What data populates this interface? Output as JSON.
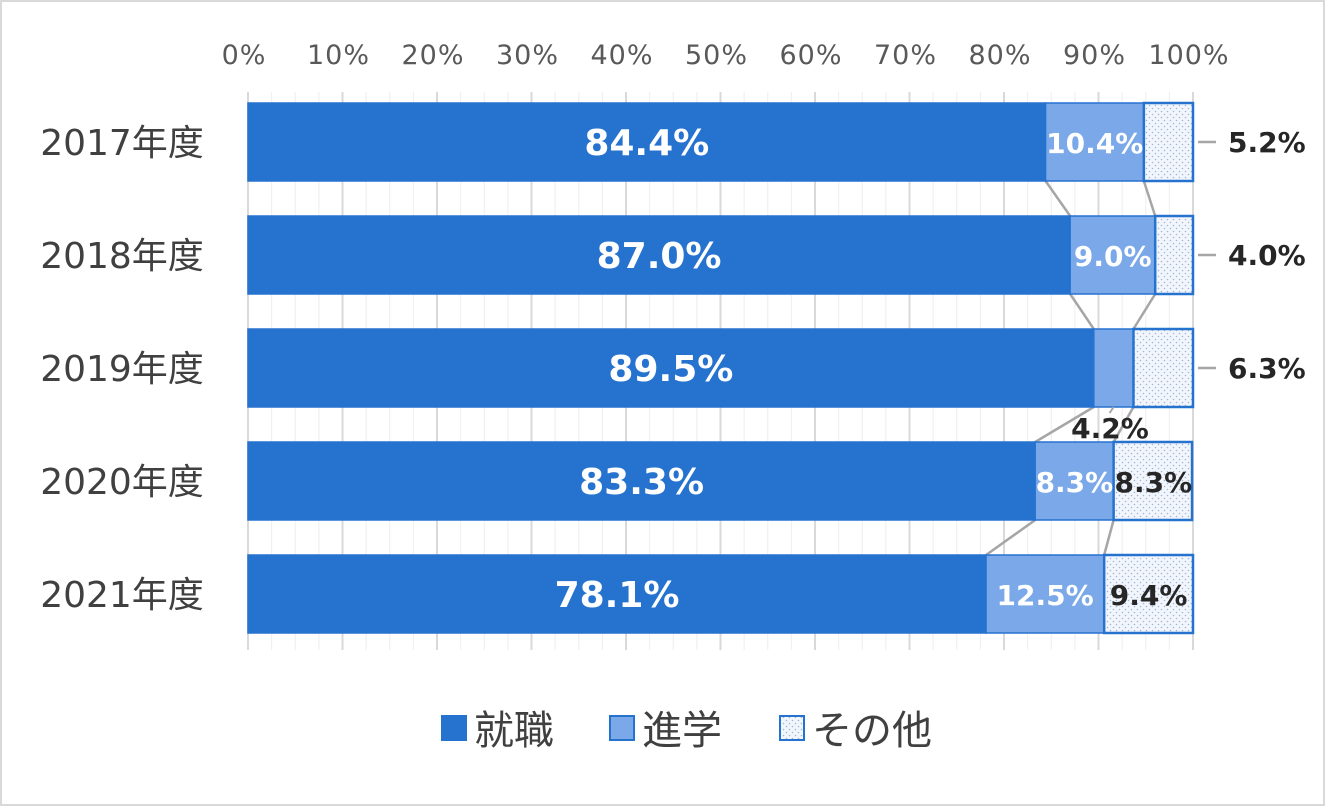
{
  "chart_data": {
    "type": "bar",
    "orientation": "horizontal",
    "stacked": "percent",
    "categories": [
      "2017年度",
      "2018年度",
      "2019年度",
      "2020年度",
      "2021年度"
    ],
    "series": [
      {
        "name": "就職",
        "values": [
          84.4,
          87.0,
          89.5,
          83.3,
          78.1
        ],
        "labels": [
          "84.4%",
          "87.0%",
          "89.5%",
          "83.3%",
          "78.1%"
        ],
        "color": "#2672cf"
      },
      {
        "name": "進学",
        "values": [
          10.4,
          9.0,
          4.2,
          8.3,
          12.5
        ],
        "labels": [
          "10.4%",
          "9.0%",
          "4.2%",
          "8.3%",
          "12.5%"
        ],
        "color": "#7aa8e8"
      },
      {
        "name": "その他",
        "values": [
          5.2,
          4.0,
          6.3,
          8.3,
          9.4
        ],
        "labels": [
          "5.2%",
          "4.0%",
          "6.3%",
          "8.3%",
          "9.4%"
        ],
        "color": "#f2f6fc",
        "pattern": "dotted"
      }
    ],
    "xlim": [
      0,
      100
    ],
    "x_ticks": [
      "0%",
      "10%",
      "20%",
      "30%",
      "40%",
      "50%",
      "60%",
      "70%",
      "80%",
      "90%",
      "100%"
    ],
    "x_axis_position": "top",
    "grid": true,
    "series_lines": true,
    "legend": "bottom",
    "title": "",
    "xlabel": "",
    "ylabel": "",
    "border_color": "#2672cf",
    "grid_color": "#d9d9d9",
    "connector_color": "#a6a6a6"
  }
}
